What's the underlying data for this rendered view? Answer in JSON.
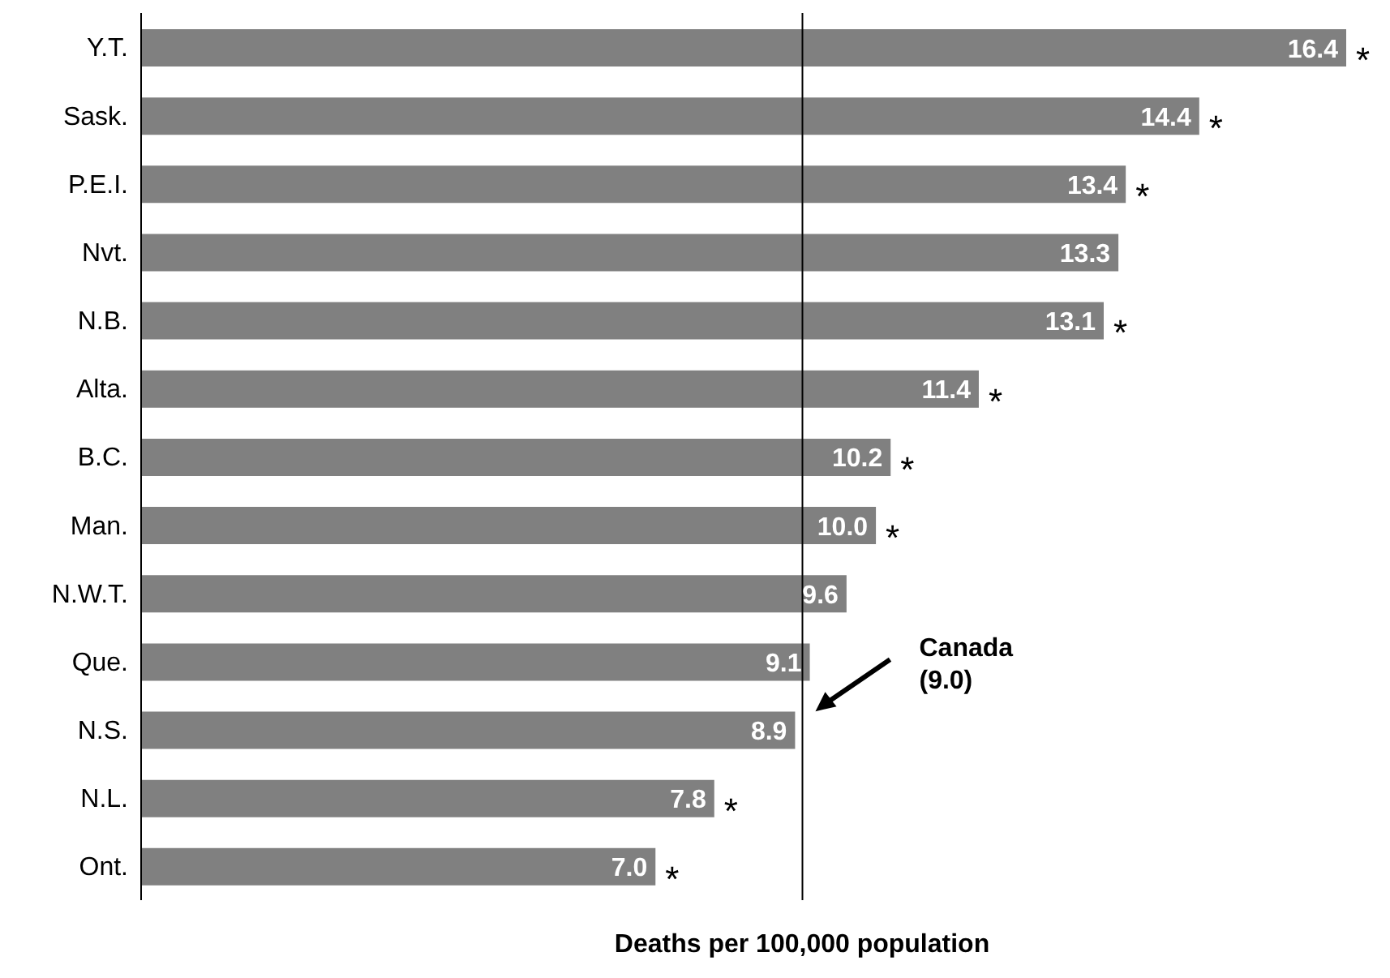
{
  "chart_data": {
    "type": "bar",
    "orientation": "horizontal",
    "xlabel": "Deaths per 100,000 population",
    "categories": [
      "Y.T.",
      "Sask.",
      "P.E.I.",
      "Nvt.",
      "N.B.",
      "Alta.",
      "B.C.",
      "Man.",
      "N.W.T.",
      "Que.",
      "N.S.",
      "N.L.",
      "Ont."
    ],
    "values": [
      16.4,
      14.4,
      13.4,
      13.3,
      13.1,
      11.4,
      10.2,
      10.0,
      9.6,
      9.1,
      8.9,
      7.8,
      7.0
    ],
    "value_labels": [
      "16.4",
      "14.4",
      "13.4",
      "13.3",
      "13.1",
      "11.4",
      "10.2",
      "10.0",
      "9.6",
      "9.1",
      "8.9",
      "7.8",
      "7.0"
    ],
    "color": "#808080",
    "tick_labels": "y",
    "grid": false,
    "legend": false,
    "ref_lines": [
      {
        "axis": "x",
        "value": 9.0,
        "label": "Canada (9.0)",
        "color": "#000000"
      }
    ],
    "annotations": [
      {
        "text": "*",
        "x": 16.4,
        "y": "Y.T."
      },
      {
        "text": "*",
        "x": 14.4,
        "y": "Sask."
      },
      {
        "text": "*",
        "x": 13.4,
        "y": "P.E.I."
      },
      {
        "text": "*",
        "x": 13.1,
        "y": "N.B."
      },
      {
        "text": "*",
        "x": 11.4,
        "y": "Alta."
      },
      {
        "text": "*",
        "x": 10.2,
        "y": "B.C."
      },
      {
        "text": "*",
        "x": 10.0,
        "y": "Man."
      },
      {
        "text": "*",
        "x": 7.8,
        "y": "N.L."
      },
      {
        "text": "*",
        "x": 7.0,
        "y": "Ont."
      }
    ]
  }
}
